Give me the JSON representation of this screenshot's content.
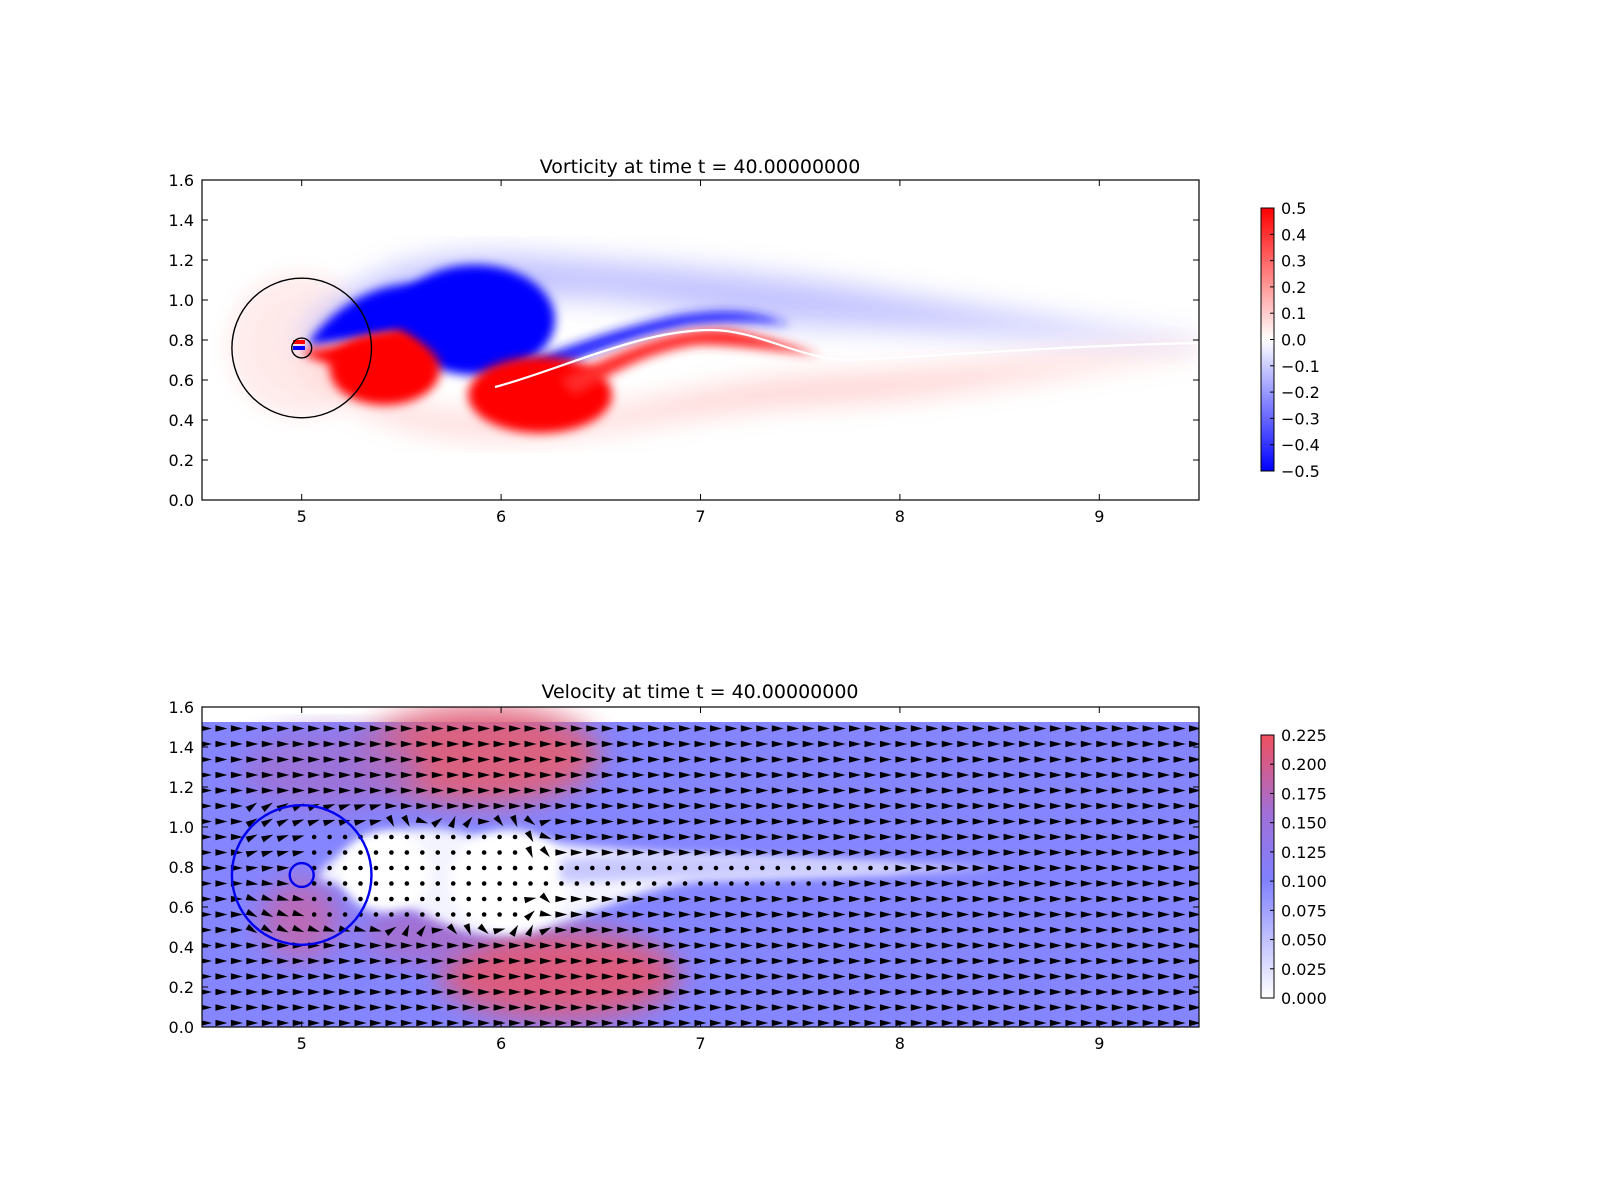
{
  "chart_data": [
    {
      "type": "heatmap",
      "title": "Vorticity at time t =    40.00000000",
      "xlabel": "",
      "ylabel": "",
      "xlim": [
        4.5,
        9.5
      ],
      "ylim": [
        0.0,
        1.6
      ],
      "xticks": [
        "5",
        "6",
        "7",
        "8",
        "9"
      ],
      "yticks": [
        "0.0",
        "0.2",
        "0.4",
        "0.6",
        "0.8",
        "1.0",
        "1.2",
        "1.4",
        "1.6"
      ],
      "colorbar": {
        "min": -0.5,
        "max": 0.5,
        "colormap": "bwr",
        "ticks": [
          "0.5",
          "0.4",
          "0.3",
          "0.2",
          "0.1",
          "0.0",
          "−0.1",
          "−0.2",
          "−0.3",
          "−0.4",
          "−0.5"
        ]
      },
      "circles": [
        {
          "cx": 5.0,
          "cy": 0.76,
          "r": 0.35,
          "color": "#000000"
        },
        {
          "cx": 5.0,
          "cy": 0.76,
          "r": 0.05,
          "color": "#000000"
        }
      ]
    },
    {
      "type": "heatmap",
      "title": "Velocity at time t =    40.00000000",
      "xlabel": "",
      "ylabel": "",
      "xlim": [
        4.5,
        9.5
      ],
      "ylim": [
        0.0,
        1.6
      ],
      "xticks": [
        "5",
        "6",
        "7",
        "8",
        "9"
      ],
      "yticks": [
        "0.0",
        "0.2",
        "0.4",
        "0.6",
        "0.8",
        "1.0",
        "1.2",
        "1.4",
        "1.6"
      ],
      "colorbar": {
        "min": 0.0,
        "max": 0.225,
        "colormap": "white-blue-red",
        "ticks": [
          "0.225",
          "0.200",
          "0.175",
          "0.150",
          "0.125",
          "0.100",
          "0.075",
          "0.050",
          "0.025",
          "0.000"
        ]
      },
      "field_top": 1.52,
      "quiver": true,
      "circles": [
        {
          "cx": 5.0,
          "cy": 0.76,
          "r": 0.35,
          "color": "#0000ee"
        },
        {
          "cx": 5.0,
          "cy": 0.76,
          "r": 0.06,
          "color": "#0000ee"
        }
      ]
    }
  ]
}
